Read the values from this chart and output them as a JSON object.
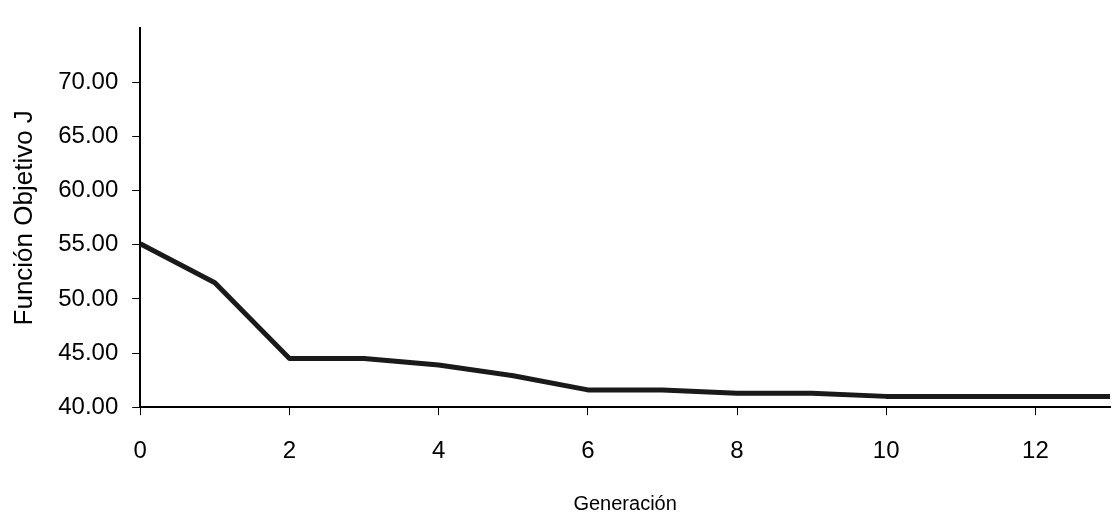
{
  "chart_data": {
    "type": "line",
    "xlabel": "Generación",
    "ylabel": "Función Objetivo J",
    "x": [
      0,
      1,
      2,
      3,
      4,
      5,
      6,
      7,
      8,
      9,
      10,
      11,
      12,
      13
    ],
    "series": [
      {
        "color": "#1a1a1a",
        "values": [
          55.1,
          51.5,
          44.5,
          44.5,
          43.9,
          42.9,
          41.6,
          41.6,
          41.3,
          41.3,
          41.0,
          41.0,
          41.0,
          41.0
        ]
      }
    ],
    "xlim": [
      0,
      13
    ],
    "xticks": [
      0,
      2,
      4,
      6,
      8,
      10,
      12
    ],
    "ylim": [
      40,
      75
    ],
    "yticks": [
      {
        "value": 40,
        "label": "40.00"
      },
      {
        "value": 45,
        "label": "45.00"
      },
      {
        "value": 50,
        "label": "50.00"
      },
      {
        "value": 55,
        "label": "55.00"
      },
      {
        "value": 60,
        "label": "60.00"
      },
      {
        "value": 65,
        "label": "65.00"
      },
      {
        "value": 70,
        "label": "70.00"
      }
    ],
    "grid": false,
    "legend": false,
    "marker": "none",
    "line_style": "solid"
  }
}
